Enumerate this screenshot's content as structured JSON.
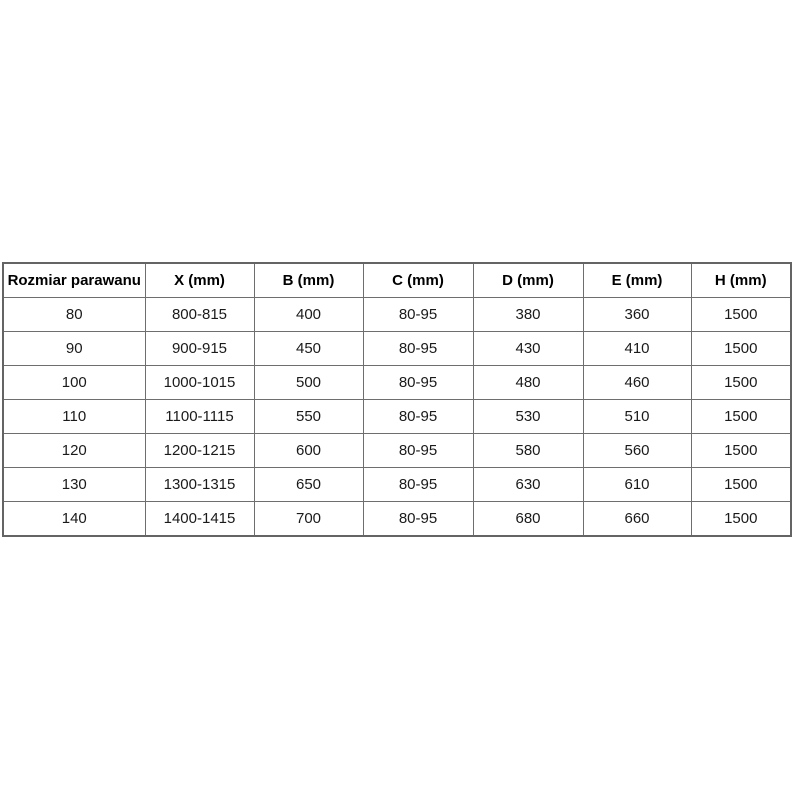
{
  "page": {
    "background": "#ffffff",
    "border_color": "#6e6e6e",
    "text_color": "#1a1a1a"
  },
  "table": {
    "headers": [
      "Rozmiar parawanu",
      "X (mm)",
      "B (mm)",
      "C (mm)",
      "D (mm)",
      "E (mm)",
      "H (mm)"
    ],
    "rows": [
      [
        "80",
        "800-815",
        "400",
        "80-95",
        "380",
        "360",
        "1500"
      ],
      [
        "90",
        "900-915",
        "450",
        "80-95",
        "430",
        "410",
        "1500"
      ],
      [
        "100",
        "1000-1015",
        "500",
        "80-95",
        "480",
        "460",
        "1500"
      ],
      [
        "110",
        "1100-1115",
        "550",
        "80-95",
        "530",
        "510",
        "1500"
      ],
      [
        "120",
        "1200-1215",
        "600",
        "80-95",
        "580",
        "560",
        "1500"
      ],
      [
        "130",
        "1300-1315",
        "650",
        "80-95",
        "630",
        "610",
        "1500"
      ],
      [
        "140",
        "1400-1415",
        "700",
        "80-95",
        "680",
        "660",
        "1500"
      ]
    ]
  },
  "chart_data": {
    "type": "table",
    "title": "",
    "columns": [
      "Rozmiar parawanu",
      "X (mm)",
      "B (mm)",
      "C (mm)",
      "D (mm)",
      "E (mm)",
      "H (mm)"
    ],
    "rows": [
      [
        "80",
        "800-815",
        "400",
        "80-95",
        "380",
        "360",
        "1500"
      ],
      [
        "90",
        "900-915",
        "450",
        "80-95",
        "430",
        "410",
        "1500"
      ],
      [
        "100",
        "1000-1015",
        "500",
        "80-95",
        "480",
        "460",
        "1500"
      ],
      [
        "110",
        "1100-1115",
        "550",
        "80-95",
        "530",
        "510",
        "1500"
      ],
      [
        "120",
        "1200-1215",
        "600",
        "80-95",
        "580",
        "560",
        "1500"
      ],
      [
        "130",
        "1300-1315",
        "650",
        "80-95",
        "630",
        "610",
        "1500"
      ],
      [
        "140",
        "1400-1415",
        "700",
        "80-95",
        "680",
        "660",
        "1500"
      ]
    ]
  }
}
